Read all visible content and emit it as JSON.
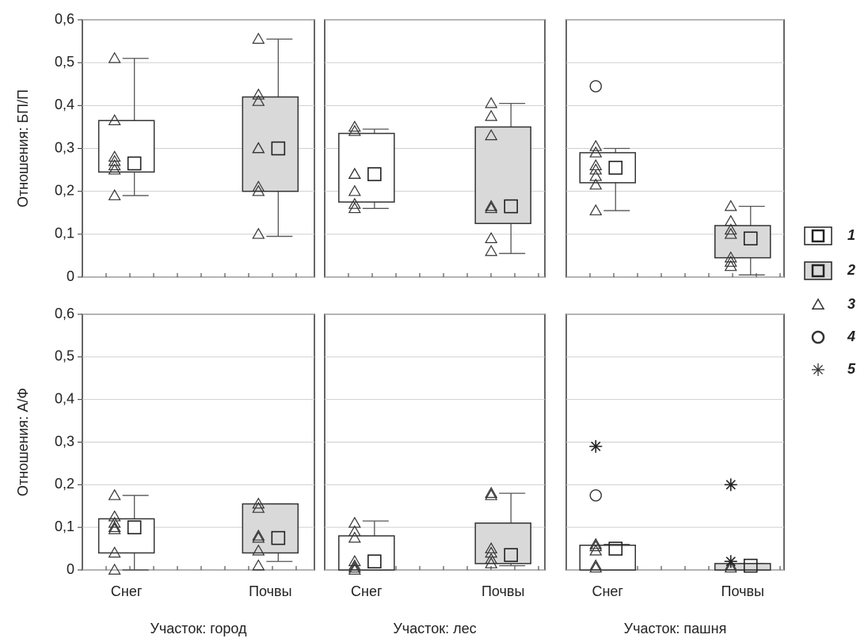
{
  "chart_data": {
    "type": "box",
    "ylim": [
      0,
      0.6
    ],
    "yticks": [
      0,
      {
        "value": 0.1,
        "label": "0,1"
      },
      {
        "value": 0.2,
        "label": "0,2"
      },
      {
        "value": 0.3,
        "label": "0,3"
      },
      {
        "value": 0.4,
        "label": "0,4"
      },
      {
        "value": 0.5,
        "label": "0,5"
      },
      {
        "value": 0.6,
        "label": "0,6"
      }
    ],
    "grid": true,
    "categories": [
      "Снег",
      "Почвы"
    ],
    "colors": [
      "#ffffff",
      "#d9d9d9"
    ],
    "ylabels": [
      "Отношения: БП/П",
      "Отношения: А/Ф"
    ],
    "xlabels": [
      "Участок: город",
      "Участок: лес",
      "Участок: пашня"
    ],
    "legend": [
      "1",
      "2",
      "3",
      "4",
      "5"
    ],
    "legend_position": "right",
    "panels": [
      {
        "boxes": [
          {
            "median": 0.265,
            "q1": 0.245,
            "q3": 0.365,
            "whisker_low": 0.19,
            "whisker_high": 0.51,
            "points": [
              0.51,
              0.365,
              0.28,
              0.27,
              0.26,
              0.25,
              0.19
            ],
            "outliers": [],
            "extremes": []
          },
          {
            "median": 0.3,
            "q1": 0.2,
            "q3": 0.42,
            "whisker_low": 0.095,
            "whisker_high": 0.555,
            "points": [
              0.555,
              0.425,
              0.41,
              0.3,
              0.3,
              0.21,
              0.2,
              0.1
            ],
            "outliers": [],
            "extremes": []
          }
        ]
      },
      {
        "boxes": [
          {
            "median": 0.24,
            "q1": 0.175,
            "q3": 0.335,
            "whisker_low": 0.16,
            "whisker_high": 0.345,
            "points": [
              0.35,
              0.34,
              0.24,
              0.24,
              0.2,
              0.17,
              0.16
            ],
            "outliers": [],
            "extremes": []
          },
          {
            "median": 0.165,
            "q1": 0.125,
            "q3": 0.35,
            "whisker_low": 0.055,
            "whisker_high": 0.405,
            "points": [
              0.405,
              0.375,
              0.33,
              0.165,
              0.16,
              0.09,
              0.06
            ],
            "outliers": [],
            "extremes": []
          }
        ]
      },
      {
        "boxes": [
          {
            "median": 0.255,
            "q1": 0.22,
            "q3": 0.29,
            "whisker_low": 0.155,
            "whisker_high": 0.3,
            "points": [
              0.305,
              0.29,
              0.26,
              0.25,
              0.235,
              0.215,
              0.155
            ],
            "outliers": [
              0.445
            ],
            "extremes": []
          },
          {
            "median": 0.09,
            "q1": 0.045,
            "q3": 0.12,
            "whisker_low": 0.005,
            "whisker_high": 0.165,
            "points": [
              0.165,
              0.13,
              0.11,
              0.1,
              0.045,
              0.035,
              0.025
            ],
            "outliers": [],
            "extremes": []
          }
        ]
      },
      {
        "boxes": [
          {
            "median": 0.1,
            "q1": 0.04,
            "q3": 0.12,
            "whisker_low": 0,
            "whisker_high": 0.175,
            "points": [
              0.175,
              0.125,
              0.11,
              0.1,
              0.095,
              0.04,
              0
            ],
            "outliers": [],
            "extremes": []
          },
          {
            "median": 0.075,
            "q1": 0.04,
            "q3": 0.155,
            "whisker_low": 0.02,
            "whisker_high": 0.155,
            "points": [
              0.155,
              0.145,
              0.08,
              0.075,
              0.045,
              0.01
            ],
            "outliers": [],
            "extremes": []
          }
        ]
      },
      {
        "boxes": [
          {
            "median": 0.02,
            "q1": 0,
            "q3": 0.08,
            "whisker_low": 0,
            "whisker_high": 0.115,
            "points": [
              0.11,
              0.09,
              0.075,
              0.02,
              0.01,
              0.005,
              0
            ],
            "outliers": [],
            "extremes": []
          },
          {
            "median": 0.035,
            "q1": 0.015,
            "q3": 0.11,
            "whisker_low": 0.01,
            "whisker_high": 0.18,
            "points": [
              0.18,
              0.175,
              0.05,
              0.04,
              0.025,
              0.015
            ],
            "outliers": [],
            "extremes": []
          }
        ]
      },
      {
        "boxes": [
          {
            "median": 0.05,
            "q1": 0,
            "q3": 0.058,
            "whisker_low": 0,
            "whisker_high": 0.06,
            "points": [
              0.06,
              0.055,
              0.045,
              0.01,
              0.005
            ],
            "outliers": [
              0.175
            ],
            "extremes": [
              0.29
            ]
          },
          {
            "median": 0.01,
            "q1": 0,
            "q3": 0.015,
            "whisker_low": 0,
            "whisker_high": 0.015,
            "points": [
              0.01,
              0.005
            ],
            "outliers": [],
            "extremes": [
              0.2,
              0.02
            ]
          }
        ]
      }
    ]
  }
}
